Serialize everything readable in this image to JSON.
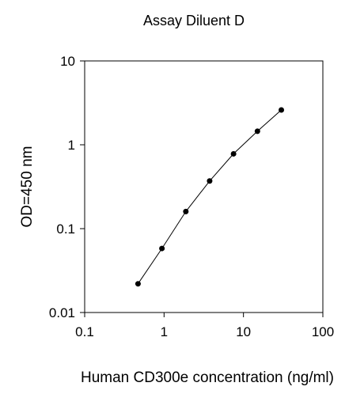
{
  "chart_data": {
    "type": "scatter",
    "title": "Assay Diluent D",
    "xlabel": "Human CD300e concentration (ng/ml)",
    "ylabel": "OD=450 nm",
    "x_scale": "log",
    "y_scale": "log",
    "xlim": [
      0.1,
      100
    ],
    "ylim": [
      0.01,
      10
    ],
    "x_ticks": [
      0.1,
      1,
      10,
      100
    ],
    "y_ticks": [
      0.01,
      0.1,
      1,
      10
    ],
    "x_tick_labels": [
      "0.1",
      "1",
      "10",
      "100"
    ],
    "y_tick_labels": [
      "0.01",
      "0.1",
      "1",
      "10"
    ],
    "grid": false,
    "series": [
      {
        "x": [
          0.47,
          0.94,
          1.88,
          3.75,
          7.5,
          15,
          30
        ],
        "y": [
          0.022,
          0.058,
          0.16,
          0.37,
          0.78,
          1.45,
          2.6
        ]
      }
    ],
    "colors": {
      "line": "#000000",
      "marker": "#000000"
    }
  }
}
